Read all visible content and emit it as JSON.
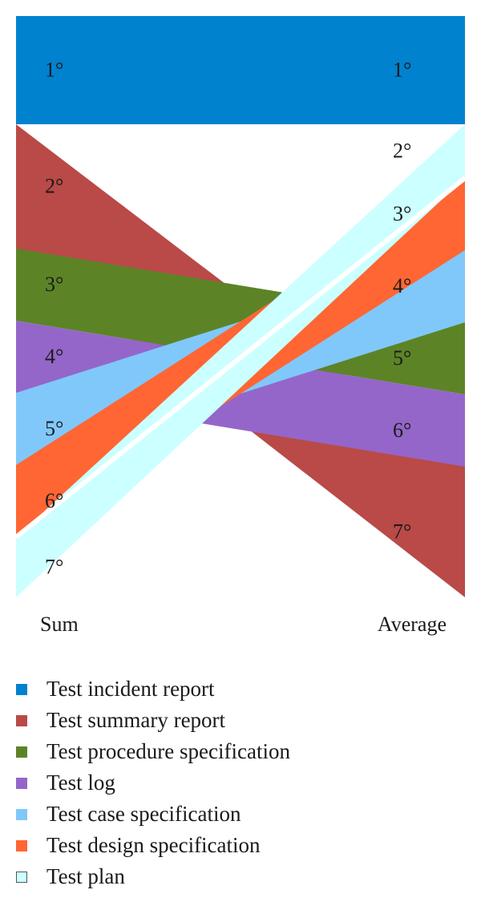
{
  "chart_data": {
    "type": "area",
    "x": [
      "Sum",
      "Average"
    ],
    "series": [
      {
        "name": "Test incident report",
        "color": "#0082CF",
        "values": [
          "1°",
          "1°"
        ],
        "ranks": [
          1,
          1
        ]
      },
      {
        "name": "Test summary report",
        "color": "#B94A48",
        "values": [
          "2°",
          "7°"
        ],
        "ranks": [
          2,
          7
        ]
      },
      {
        "name": "Test procedure specification",
        "color": "#5C8427",
        "values": [
          "3°",
          "5°"
        ],
        "ranks": [
          3,
          5
        ]
      },
      {
        "name": "Test log",
        "color": "#9466C9",
        "values": [
          "4°",
          "6°"
        ],
        "ranks": [
          4,
          6
        ]
      },
      {
        "name": "Test case specification",
        "color": "#80C8FA",
        "values": [
          "5°",
          "4°"
        ],
        "ranks": [
          5,
          4
        ]
      },
      {
        "name": "Test design specification",
        "color": "#FF6633",
        "values": [
          "6°",
          "3°"
        ],
        "ranks": [
          6,
          3
        ]
      },
      {
        "name": "Test plan",
        "color": "#CCFFFF",
        "values": [
          "7°",
          "2°"
        ],
        "ranks": [
          7,
          2
        ]
      }
    ],
    "legend_position": "bottom",
    "grid": false
  }
}
